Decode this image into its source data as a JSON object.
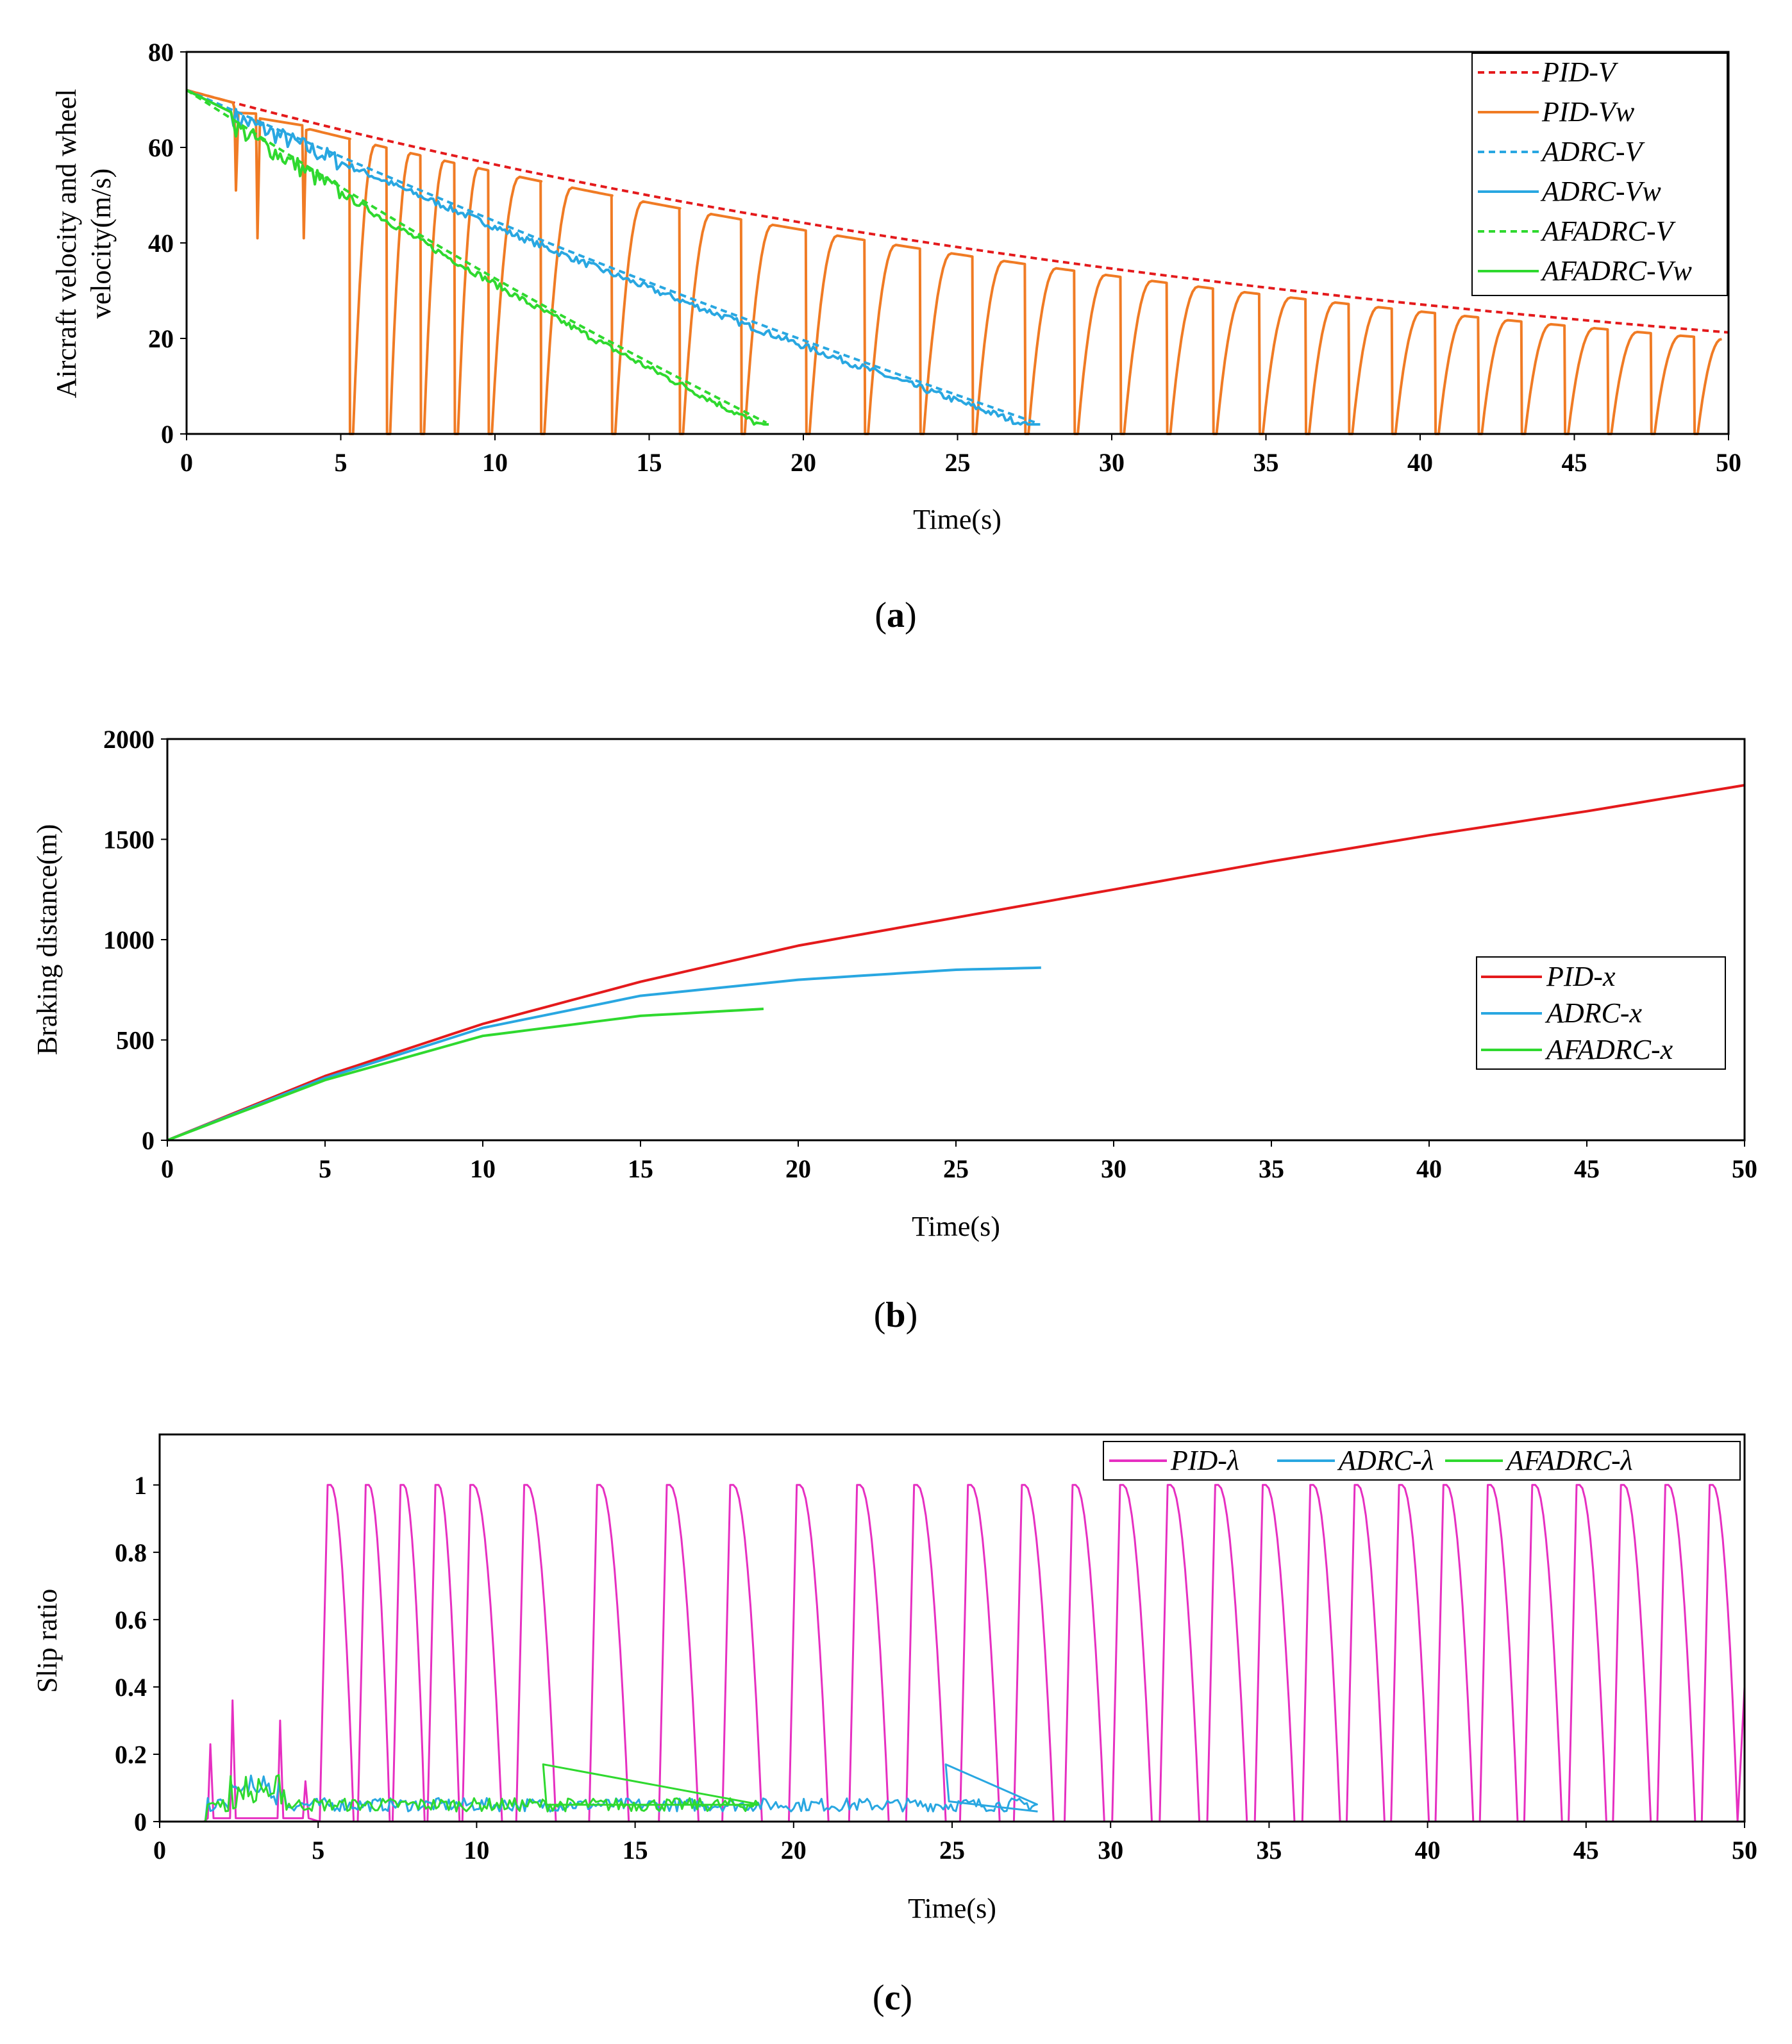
{
  "chart_data": [
    {
      "type": "line",
      "caption": "a",
      "xlabel": "Time(s)",
      "ylabel": "Aircraft velocity and wheel velocity(m/s)",
      "ylabel_lines": [
        "Aircraft velocity and wheel",
        "velocity(m/s)"
      ],
      "xlim": [
        0,
        50
      ],
      "ylim": [
        0,
        80
      ],
      "xticks": [
        0,
        5,
        10,
        15,
        20,
        25,
        30,
        35,
        40,
        45,
        50
      ],
      "yticks": [
        0,
        20,
        40,
        60,
        80
      ],
      "legend": "top-right",
      "series": [
        {
          "name": "PID-V",
          "color": "#e41a1c",
          "style": "dashed",
          "kind": "vel_pid"
        },
        {
          "name": "PID-Vw",
          "color": "#f07b24",
          "style": "solid",
          "kind": "vw_pid",
          "lock_times": [
            5.3,
            6.5,
            7.6,
            8.7,
            9.8,
            11.5,
            13.8,
            16.0,
            18.0,
            20.1,
            22.0,
            23.8,
            25.5,
            27.2,
            28.8,
            30.3,
            31.8,
            33.3,
            34.8,
            36.3,
            37.7,
            39.1,
            40.5,
            41.9,
            43.3,
            44.7,
            46.1,
            47.5,
            48.9
          ]
        },
        {
          "name": "ADRC-V",
          "color": "#29a7e1",
          "style": "dashed",
          "kind": "vel_lin",
          "t_end": 27.7,
          "v_end": 2
        },
        {
          "name": "ADRC-Vw",
          "color": "#29a7e1",
          "style": "solid",
          "kind": "vw_lin",
          "t_end": 27.7,
          "v_end": 2
        },
        {
          "name": "AFADRC-V",
          "color": "#2fd92f",
          "style": "dashed",
          "kind": "vel_lin",
          "t_end": 18.9,
          "v_end": 2
        },
        {
          "name": "AFADRC-Vw",
          "color": "#2fd92f",
          "style": "solid",
          "kind": "vw_lin",
          "t_end": 18.9,
          "v_end": 2
        }
      ]
    },
    {
      "type": "line",
      "caption": "b",
      "xlabel": "Time(s)",
      "ylabel": "Braking distance(m)",
      "xlim": [
        0,
        50
      ],
      "ylim": [
        0,
        2000
      ],
      "xticks": [
        0,
        5,
        10,
        15,
        20,
        25,
        30,
        35,
        40,
        45,
        50
      ],
      "yticks": [
        0,
        500,
        1000,
        1500,
        2000
      ],
      "legend": "center-right",
      "series": [
        {
          "name": "PID-x",
          "color": "#e41a1c",
          "t_end": 50,
          "x": [
            0,
            5,
            10,
            15,
            20,
            25,
            30,
            35,
            40,
            45,
            50
          ],
          "y": [
            0,
            320,
            580,
            790,
            970,
            1110,
            1250,
            1390,
            1520,
            1640,
            1770
          ]
        },
        {
          "name": "ADRC-x",
          "color": "#29a7e1",
          "t_end": 27.7,
          "x": [
            0,
            5,
            10,
            15,
            20,
            25,
            27.7
          ],
          "y": [
            0,
            310,
            560,
            720,
            800,
            850,
            860
          ]
        },
        {
          "name": "AFADRC-x",
          "color": "#2fd92f",
          "t_end": 18.9,
          "x": [
            0,
            5,
            10,
            15,
            18.9
          ],
          "y": [
            0,
            300,
            520,
            620,
            655
          ]
        }
      ]
    },
    {
      "type": "line",
      "caption": "c",
      "xlabel": "Time(s)",
      "ylabel": "Slip ratio",
      "xlim": [
        0,
        50
      ],
      "ylim": [
        0,
        1.15
      ],
      "xticks": [
        0,
        5,
        10,
        15,
        20,
        25,
        30,
        35,
        40,
        45,
        50
      ],
      "yticks": [
        0,
        0.2,
        0.4,
        0.6,
        0.8,
        1
      ],
      "legend": "top-right",
      "series": [
        {
          "name": "PID-λ",
          "color": "#e62fc1",
          "kind": "slip_pid"
        },
        {
          "name": "ADRC-λ",
          "color": "#29a7e1",
          "kind": "slip_noise",
          "t_end": 27.7
        },
        {
          "name": "AFADRC-λ",
          "color": "#2fd92f",
          "kind": "slip_noise",
          "t_end": 18.9
        }
      ]
    }
  ]
}
